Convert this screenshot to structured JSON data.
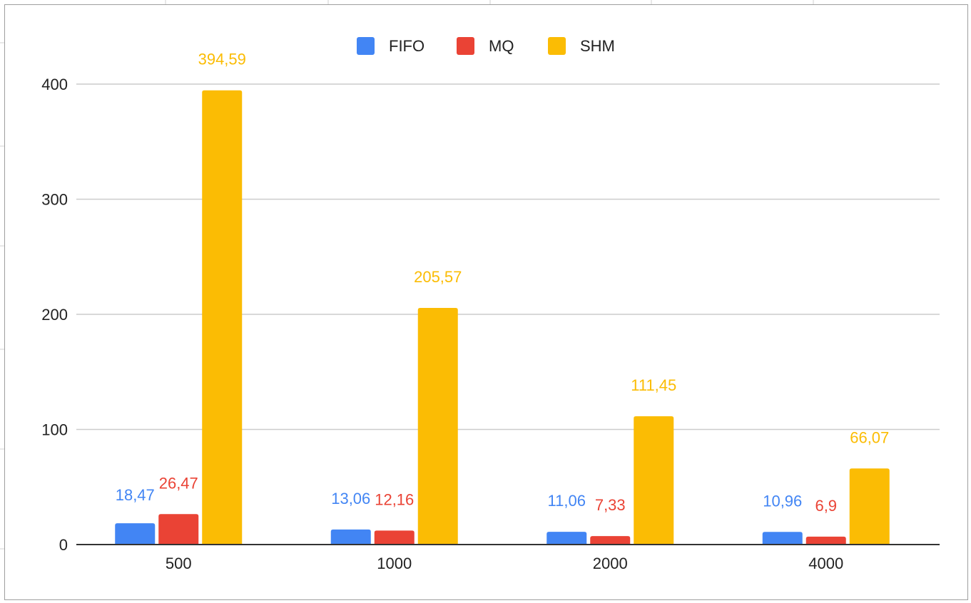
{
  "chart_data": {
    "type": "bar",
    "categories": [
      "500",
      "1000",
      "2000",
      "4000"
    ],
    "series": [
      {
        "name": "FIFO",
        "values": [
          18.47,
          13.06,
          11.06,
          10.96
        ],
        "labels": [
          "18,47",
          "13,06",
          "11,06",
          "10,96"
        ],
        "color": "#4285F4"
      },
      {
        "name": "MQ",
        "values": [
          26.47,
          12.16,
          7.33,
          6.9
        ],
        "labels": [
          "26,47",
          "12,16",
          "7,33",
          "6,9"
        ],
        "color": "#EA4335"
      },
      {
        "name": "SHM",
        "values": [
          394.59,
          205.57,
          111.45,
          66.07
        ],
        "labels": [
          "394,59",
          "205,57",
          "111,45",
          "66,07"
        ],
        "color": "#FBBC04"
      }
    ],
    "title": "",
    "xlabel": "",
    "ylabel": "",
    "ylim": [
      0,
      400
    ],
    "yticks": [
      "0",
      "100",
      "200",
      "300",
      "400"
    ],
    "grid": true,
    "legend": "top-center"
  }
}
